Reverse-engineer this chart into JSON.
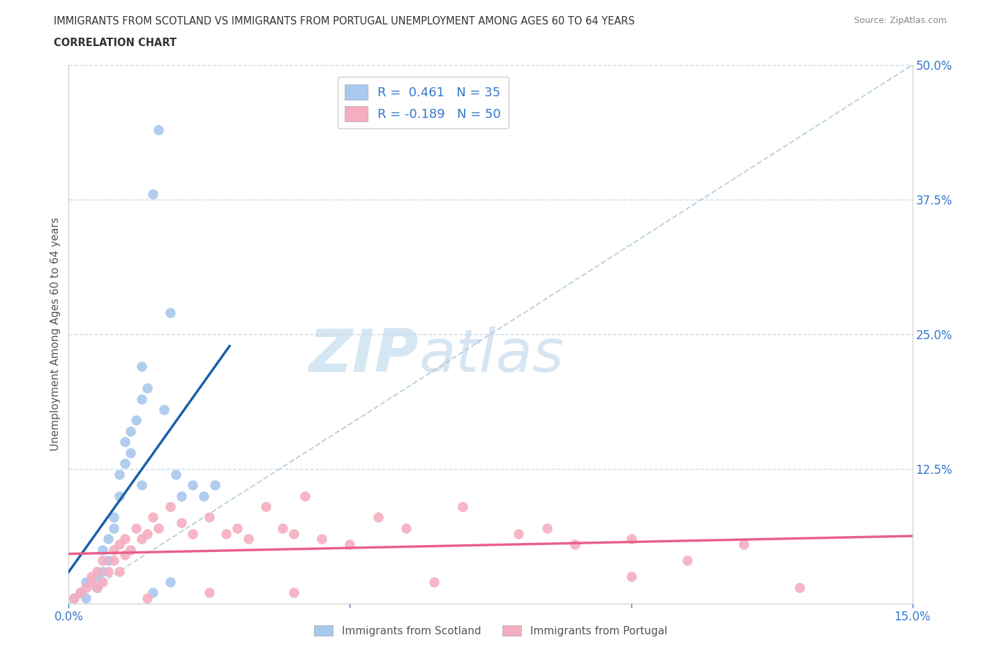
{
  "title_line1": "IMMIGRANTS FROM SCOTLAND VS IMMIGRANTS FROM PORTUGAL UNEMPLOYMENT AMONG AGES 60 TO 64 YEARS",
  "title_line2": "CORRELATION CHART",
  "source": "Source: ZipAtlas.com",
  "ylabel": "Unemployment Among Ages 60 to 64 years",
  "xlim": [
    0.0,
    0.15
  ],
  "ylim": [
    0.0,
    0.5
  ],
  "yticks_right": [
    0.0,
    0.125,
    0.25,
    0.375,
    0.5
  ],
  "yticks_right_labels": [
    "",
    "12.5%",
    "25.0%",
    "37.5%",
    "50.0%"
  ],
  "background_color": "#ffffff",
  "grid_color": "#c8daea",
  "scotland_color": "#a8c8ee",
  "portugal_color": "#f5aec0",
  "scotland_line_color": "#1a5faa",
  "portugal_line_color": "#e8608a",
  "R_scotland": 0.461,
  "N_scotland": 35,
  "R_portugal": -0.189,
  "N_portugal": 50,
  "scotland_x": [
    0.001,
    0.002,
    0.003,
    0.003,
    0.004,
    0.005,
    0.005,
    0.006,
    0.006,
    0.007,
    0.007,
    0.008,
    0.008,
    0.009,
    0.009,
    0.01,
    0.01,
    0.011,
    0.011,
    0.012,
    0.013,
    0.013,
    0.014,
    0.015,
    0.016,
    0.017,
    0.018,
    0.019,
    0.02,
    0.022,
    0.024,
    0.026,
    0.015,
    0.018,
    0.013
  ],
  "scotland_y": [
    0.005,
    0.01,
    0.005,
    0.02,
    0.02,
    0.025,
    0.015,
    0.03,
    0.05,
    0.04,
    0.06,
    0.07,
    0.08,
    0.1,
    0.12,
    0.13,
    0.15,
    0.14,
    0.16,
    0.17,
    0.19,
    0.22,
    0.2,
    0.38,
    0.44,
    0.18,
    0.27,
    0.12,
    0.1,
    0.11,
    0.1,
    0.11,
    0.01,
    0.02,
    0.11
  ],
  "portugal_x": [
    0.001,
    0.002,
    0.003,
    0.004,
    0.004,
    0.005,
    0.005,
    0.006,
    0.006,
    0.007,
    0.008,
    0.008,
    0.009,
    0.009,
    0.01,
    0.01,
    0.011,
    0.012,
    0.013,
    0.014,
    0.015,
    0.016,
    0.018,
    0.02,
    0.022,
    0.025,
    0.028,
    0.03,
    0.032,
    0.035,
    0.038,
    0.04,
    0.042,
    0.045,
    0.05,
    0.055,
    0.06,
    0.07,
    0.08,
    0.085,
    0.09,
    0.1,
    0.11,
    0.12,
    0.13,
    0.014,
    0.025,
    0.04,
    0.065,
    0.1
  ],
  "portugal_y": [
    0.005,
    0.01,
    0.015,
    0.02,
    0.025,
    0.03,
    0.015,
    0.04,
    0.02,
    0.03,
    0.04,
    0.05,
    0.03,
    0.055,
    0.045,
    0.06,
    0.05,
    0.07,
    0.06,
    0.065,
    0.08,
    0.07,
    0.09,
    0.075,
    0.065,
    0.08,
    0.065,
    0.07,
    0.06,
    0.09,
    0.07,
    0.065,
    0.1,
    0.06,
    0.055,
    0.08,
    0.07,
    0.09,
    0.065,
    0.07,
    0.055,
    0.06,
    0.04,
    0.055,
    0.015,
    0.005,
    0.01,
    0.01,
    0.02,
    0.025
  ],
  "watermark_zip": "ZIP",
  "watermark_atlas": "atlas"
}
